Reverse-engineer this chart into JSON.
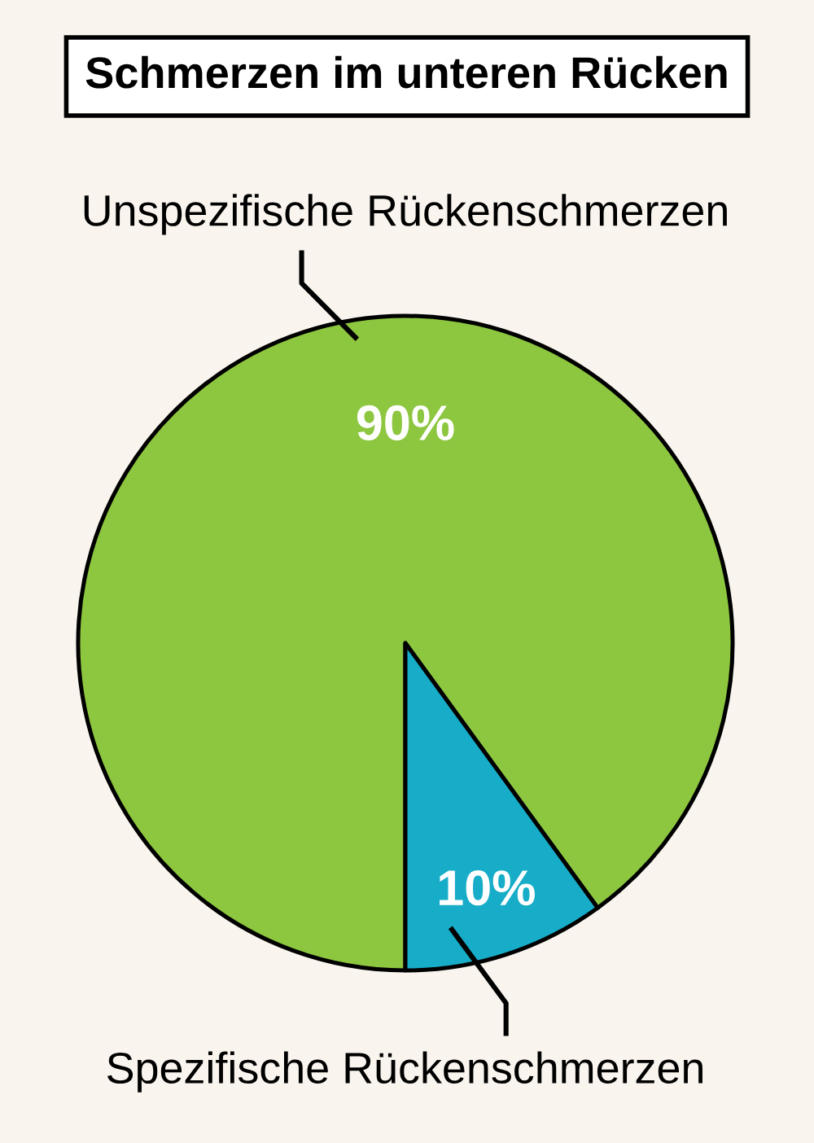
{
  "chart_data": {
    "type": "pie",
    "title": "Schmerzen im unteren Rücken",
    "categories": [
      "Unspezifische Rückenschmerzen",
      "Spezifische Rückenschmerzen"
    ],
    "values": [
      90,
      10
    ],
    "colors": [
      "#8dc63f",
      "#17adc8"
    ],
    "value_labels": [
      "90%",
      "10%"
    ]
  }
}
